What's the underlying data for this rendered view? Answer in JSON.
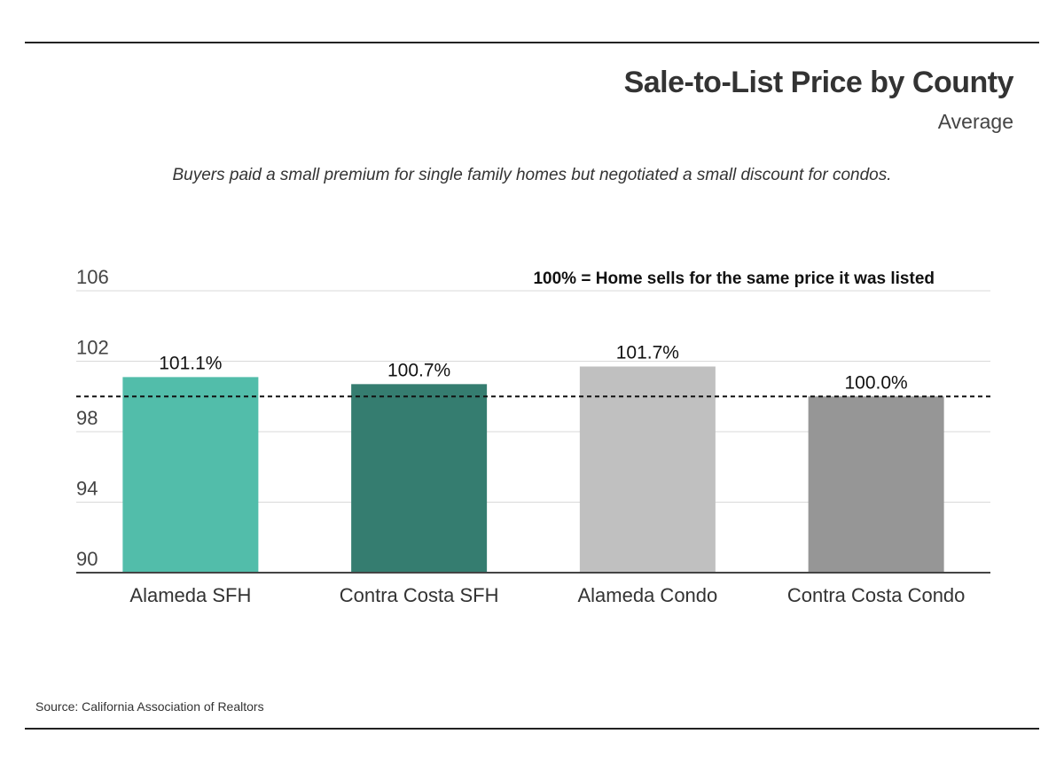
{
  "header": {
    "title": "Sale-to-List Price by County",
    "subtitle": "Average"
  },
  "caption": "Buyers paid a small premium for single family homes but negotiated a small discount for condos.",
  "source": "Source:  California Association of Realtors",
  "chart_data": {
    "type": "bar",
    "title": "Sale-to-List Price by County",
    "subtitle": "Average",
    "categories": [
      "Alameda SFH",
      "Contra Costa SFH",
      "Alameda Condo",
      "Contra Costa Condo"
    ],
    "values": [
      101.1,
      100.7,
      101.7,
      100.0
    ],
    "value_labels": [
      "101.1%",
      "100.7%",
      "101.7%",
      "100.0%"
    ],
    "colors": [
      "#52bdaa",
      "#357d70",
      "#c0c0c0",
      "#969696"
    ],
    "ylim": [
      90,
      106
    ],
    "yticks": [
      90,
      94,
      98,
      102,
      106
    ],
    "ytick_labels": [
      "90",
      "94",
      "98",
      "102",
      "106"
    ],
    "grid": true,
    "reference_line": {
      "value": 100,
      "style": "dashed",
      "label": "100% = Home sells for the same price it was listed"
    },
    "xlabel": "",
    "ylabel": ""
  }
}
